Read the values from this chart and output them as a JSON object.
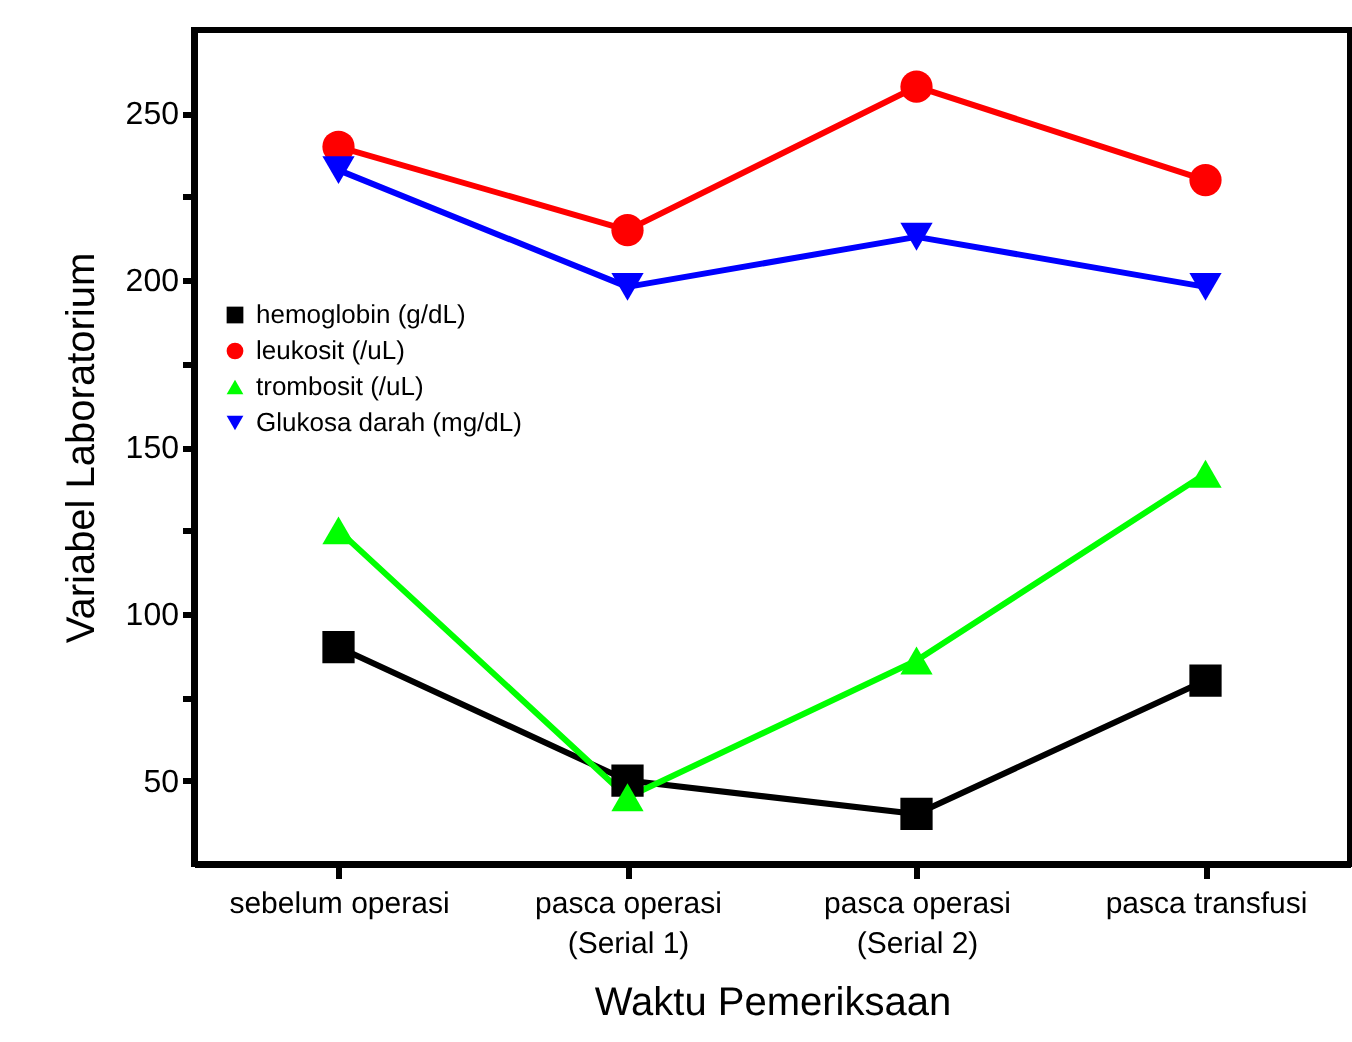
{
  "chart_data": {
    "type": "line",
    "xlabel": "Waktu Pemeriksaan",
    "ylabel": "Variabel Laboratorium",
    "categories": [
      "sebelum operasi",
      "pasca operasi (Serial 1)",
      "pasca operasi (Serial 2)",
      "pasca transfusi"
    ],
    "series": [
      {
        "name": "hemoglobin (g/dL)",
        "color": "#000000",
        "marker": "square",
        "values": [
          90,
          50,
          40,
          80
        ]
      },
      {
        "name": "leukosit (/uL)",
        "color": "#ff0000",
        "marker": "circle",
        "values": [
          240,
          215,
          258,
          230
        ]
      },
      {
        "name": "trombosit (/uL)",
        "color": "#00ff00",
        "marker": "triangle",
        "values": [
          125,
          45,
          86,
          142
        ]
      },
      {
        "name": "Glukosa darah (mg/dL)",
        "color": "#0000ff",
        "marker": "triangle-down",
        "values": [
          233,
          198,
          213,
          198
        ]
      }
    ],
    "ylim": [
      25,
      275
    ],
    "yticks": [
      50,
      {
        "value": 75,
        "label": null
      },
      100,
      {
        "value": 125,
        "label": null
      },
      150,
      {
        "value": 175,
        "label": null
      },
      200,
      {
        "value": 225,
        "label": null
      },
      250
    ],
    "grid": false,
    "legend": "left",
    "line_style": "solid"
  }
}
